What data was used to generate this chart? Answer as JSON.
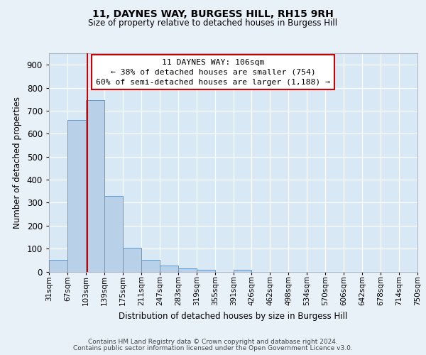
{
  "title": "11, DAYNES WAY, BURGESS HILL, RH15 9RH",
  "subtitle": "Size of property relative to detached houses in Burgess Hill",
  "xlabel": "Distribution of detached houses by size in Burgess Hill",
  "ylabel": "Number of detached properties",
  "bin_edges": [
    31,
    67,
    103,
    139,
    175,
    211,
    247,
    283,
    319,
    355,
    391,
    426,
    462,
    498,
    534,
    570,
    606,
    642,
    678,
    714,
    750
  ],
  "bar_heights": [
    50,
    660,
    745,
    330,
    105,
    50,
    27,
    13,
    7,
    0,
    7,
    0,
    0,
    0,
    0,
    0,
    0,
    0,
    0,
    0
  ],
  "bar_color": "#b8d0e8",
  "bar_edge_color": "#5b9bd5",
  "property_size": 106,
  "vline_color": "#cc0000",
  "ylim_max": 950,
  "yticks": [
    0,
    100,
    200,
    300,
    400,
    500,
    600,
    700,
    800,
    900
  ],
  "xtick_labels": [
    "31sqm",
    "67sqm",
    "103sqm",
    "139sqm",
    "175sqm",
    "211sqm",
    "247sqm",
    "283sqm",
    "319sqm",
    "355sqm",
    "391sqm",
    "426sqm",
    "462sqm",
    "498sqm",
    "534sqm",
    "570sqm",
    "606sqm",
    "642sqm",
    "678sqm",
    "714sqm",
    "750sqm"
  ],
  "annotation_title": "11 DAYNES WAY: 106sqm",
  "annotation_line1": "← 38% of detached houses are smaller (754)",
  "annotation_line2": "60% of semi-detached houses are larger (1,188) →",
  "annotation_box_edgecolor": "#cc0000",
  "fig_bg_color": "#e8f0f8",
  "plot_bg_color": "#d8e8f4",
  "grid_color": "#ffffff",
  "footer_line1": "Contains HM Land Registry data © Crown copyright and database right 2024.",
  "footer_line2": "Contains public sector information licensed under the Open Government Licence v3.0."
}
